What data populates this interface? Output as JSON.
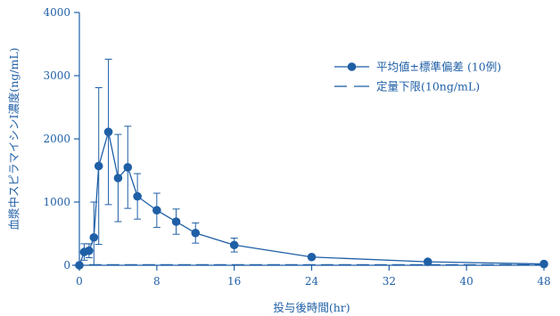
{
  "colors": {
    "main": "#1f5fa6",
    "background": "#ffffff"
  },
  "chart_data": {
    "type": "line",
    "xlabel": "投与後時間(hr)",
    "ylabel": "血漿中スピラマイシンⅠ濃度(ng/mL)",
    "xlim": [
      0,
      48
    ],
    "ylim": [
      0,
      4000
    ],
    "x_ticks": [
      "0",
      "8",
      "16",
      "24",
      "32",
      "40",
      "48"
    ],
    "x_tick_values": [
      0,
      8,
      16,
      24,
      32,
      40,
      48
    ],
    "y_ticks": [
      "0",
      "1000",
      "2000",
      "3000",
      "4000"
    ],
    "y_tick_values": [
      0,
      1000,
      2000,
      3000,
      4000
    ],
    "grid": false,
    "legend_position": "top-right",
    "series": [
      {
        "name": "平均値±標準偏差 (10例)",
        "x": [
          0,
          0.5,
          1,
          1.5,
          2,
          3,
          4,
          5,
          6,
          8,
          10,
          12,
          16,
          24,
          36,
          48
        ],
        "y": [
          0,
          210,
          230,
          440,
          1570,
          2110,
          1380,
          1550,
          1090,
          870,
          690,
          510,
          320,
          130,
          55,
          20
        ],
        "err": [
          0,
          130,
          110,
          560,
          1240,
          1150,
          690,
          650,
          360,
          270,
          200,
          160,
          110,
          0,
          0,
          0
        ],
        "marker": "filled-circle"
      }
    ],
    "reference_line": {
      "name": "定量下限(10ng/mL)",
      "y": 10,
      "x_range": [
        1,
        48
      ],
      "style": "dashed"
    }
  }
}
